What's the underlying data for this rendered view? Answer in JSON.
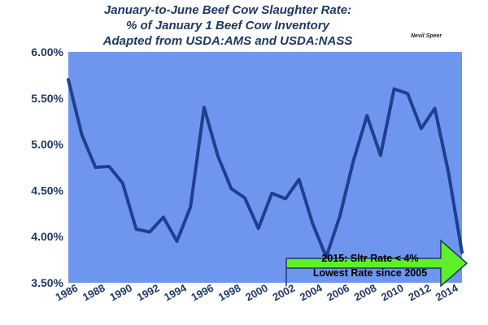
{
  "chart_data": {
    "type": "line",
    "title": "January-to-June Beef Cow Slaughter Rate:",
    "subtitle": "% of January 1 Beef Cow Inventory",
    "source": "Adapted from USDA:AMS and USDA:NASS",
    "credit": "Nevil Speer",
    "x": [
      1986,
      1987,
      1988,
      1989,
      1990,
      1991,
      1992,
      1993,
      1994,
      1995,
      1996,
      1997,
      1998,
      1999,
      2000,
      2001,
      2002,
      2003,
      2004,
      2005,
      2006,
      2007,
      2008,
      2009,
      2010,
      2011,
      2012,
      2013,
      2014,
      2015
    ],
    "series": [
      {
        "values": [
          5.7,
          5.1,
          4.75,
          4.76,
          4.58,
          4.08,
          4.05,
          4.21,
          3.95,
          4.32,
          5.4,
          4.88,
          4.52,
          4.42,
          4.09,
          4.47,
          4.41,
          4.62,
          4.14,
          3.78,
          4.22,
          4.82,
          5.31,
          4.88,
          5.6,
          5.55,
          5.17,
          5.39,
          4.7,
          3.83
        ],
        "color": "#1f3f8f"
      }
    ],
    "x_tick_labels": [
      "1986",
      "1988",
      "1990",
      "1992",
      "1994",
      "1996",
      "1998",
      "2000",
      "2002",
      "2004",
      "2006",
      "2008",
      "2010",
      "2012",
      "2014"
    ],
    "y_tick_labels": [
      "3.50%",
      "4.00%",
      "4.50%",
      "5.00%",
      "5.50%",
      "6.00%"
    ],
    "xlim": [
      1986,
      2015
    ],
    "ylim": [
      3.5,
      6.0
    ],
    "plot_background": "#6f96ee",
    "grid": false,
    "annotation": {
      "lines": [
        "2015:  Sltr Rate < 4%",
        "Lowest Rate  since 2005"
      ],
      "fill": "#5df02a"
    }
  }
}
